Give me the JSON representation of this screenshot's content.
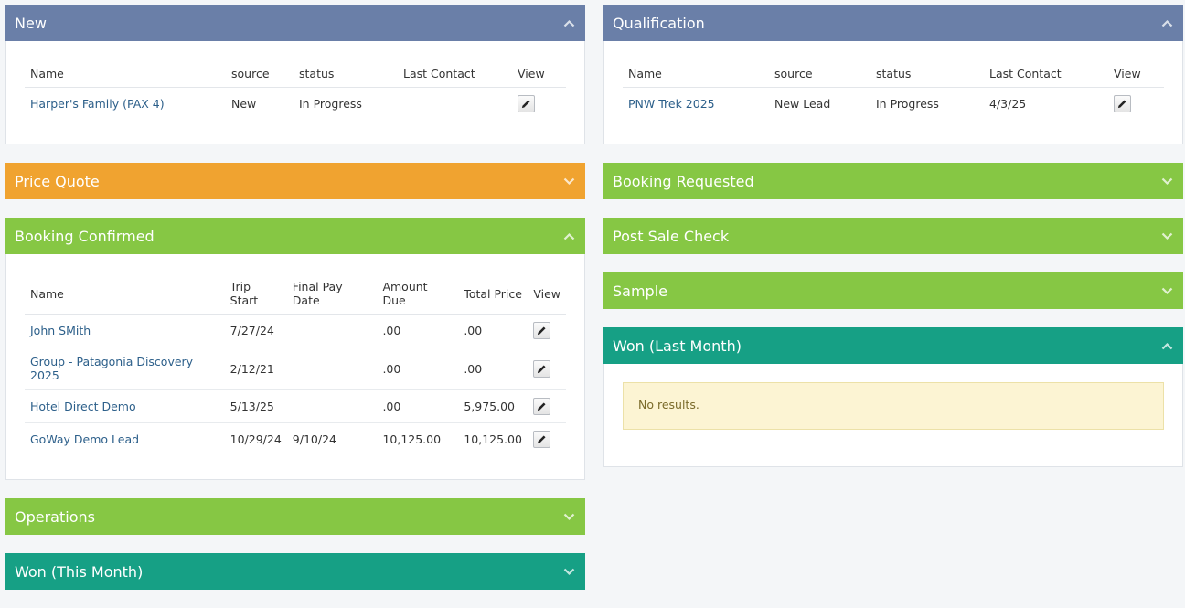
{
  "colors": {
    "blue": "#6a7fa8",
    "orange": "#f0a330",
    "green": "#86c744",
    "teal": "#16a085",
    "link": "#2c5f8a"
  },
  "left": {
    "new": {
      "title": "New",
      "columns": [
        "Name",
        "source",
        "status",
        "Last Contact",
        "View"
      ],
      "rows": [
        {
          "name": "Harper's Family (PAX 4)",
          "source": "New",
          "status": "In Progress",
          "last_contact": ""
        }
      ]
    },
    "price_quote": {
      "title": "Price Quote"
    },
    "booking_confirmed": {
      "title": "Booking Confirmed",
      "columns": [
        "Name",
        "Trip Start",
        "Final Pay Date",
        "Amount Due",
        "Total Price",
        "View"
      ],
      "rows": [
        {
          "name": "John SMith",
          "trip_start": "7/27/24",
          "final_pay_date": "",
          "amount_due": ".00",
          "total_price": ".00"
        },
        {
          "name": "Group - Patagonia Discovery 2025",
          "trip_start": "2/12/21",
          "final_pay_date": "",
          "amount_due": ".00",
          "total_price": ".00"
        },
        {
          "name": "Hotel Direct Demo",
          "trip_start": "5/13/25",
          "final_pay_date": "",
          "amount_due": ".00",
          "total_price": "5,975.00"
        },
        {
          "name": "GoWay Demo Lead",
          "trip_start": "10/29/24",
          "final_pay_date": "9/10/24",
          "amount_due": "10,125.00",
          "total_price": "10,125.00"
        }
      ]
    },
    "operations": {
      "title": "Operations"
    },
    "won_this_month": {
      "title": "Won (This Month)"
    }
  },
  "right": {
    "qualification": {
      "title": "Qualification",
      "columns": [
        "Name",
        "source",
        "status",
        "Last Contact",
        "View"
      ],
      "rows": [
        {
          "name": "PNW Trek 2025",
          "source": "New Lead",
          "status": "In Progress",
          "last_contact": "4/3/25"
        }
      ]
    },
    "booking_requested": {
      "title": "Booking Requested"
    },
    "post_sale_check": {
      "title": "Post Sale Check"
    },
    "sample": {
      "title": "Sample"
    },
    "won_last_month": {
      "title": "Won (Last Month)",
      "empty_message": "No results."
    }
  },
  "icons": {
    "collapse": "chevron-up-icon",
    "expand": "chevron-down-icon",
    "edit": "pencil-icon"
  }
}
